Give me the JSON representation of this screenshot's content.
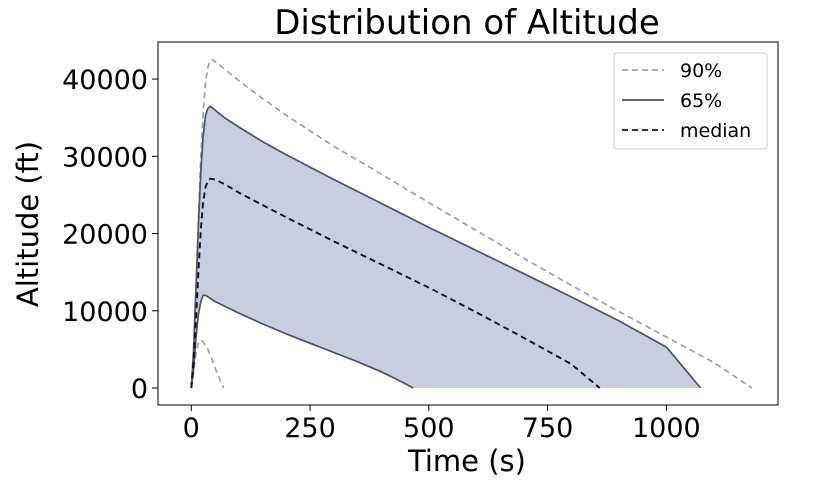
{
  "chart_data": {
    "type": "line",
    "title": "Distribution of Altitude",
    "xlabel": "Time (s)",
    "ylabel": "Altitude (ft)",
    "xlim": [
      -70,
      1235
    ],
    "ylim": [
      -2200,
      44800
    ],
    "xticks": [
      0,
      250,
      500,
      750,
      1000
    ],
    "yticks": [
      0,
      10000,
      20000,
      30000,
      40000
    ],
    "legend_position": "top-right",
    "legend": [
      {
        "label": "90%",
        "style": "dashed",
        "color": "#9e9eb2"
      },
      {
        "label": "65%",
        "style": "solid",
        "color": "#4d5166"
      },
      {
        "label": "median",
        "style": "dashed",
        "color": "#111111"
      }
    ],
    "fill_color": "#c8cedf",
    "series": [
      {
        "name": "90%",
        "role": "upper",
        "color": "#9e9eb2",
        "style": "dashed",
        "points": [
          [
            0,
            0
          ],
          [
            5,
            4000
          ],
          [
            10,
            12000
          ],
          [
            15,
            22000
          ],
          [
            20,
            30000
          ],
          [
            25,
            35500
          ],
          [
            30,
            39500
          ],
          [
            35,
            41500
          ],
          [
            40,
            42500
          ],
          [
            45,
            42500
          ],
          [
            60,
            41800
          ],
          [
            100,
            39800
          ],
          [
            150,
            37500
          ],
          [
            200,
            35300
          ],
          [
            300,
            31300
          ],
          [
            400,
            27700
          ],
          [
            500,
            24000
          ],
          [
            600,
            20400
          ],
          [
            700,
            16800
          ],
          [
            800,
            13300
          ],
          [
            900,
            9900
          ],
          [
            1000,
            6600
          ],
          [
            1100,
            3300
          ],
          [
            1180,
            0
          ]
        ]
      },
      {
        "name": "90%",
        "role": "lower",
        "color": "#9e9eb2",
        "style": "dashed",
        "points": [
          [
            0,
            0
          ],
          [
            5,
            2000
          ],
          [
            10,
            4500
          ],
          [
            15,
            5800
          ],
          [
            20,
            6200
          ],
          [
            25,
            6000
          ],
          [
            35,
            5000
          ],
          [
            45,
            3500
          ],
          [
            55,
            1800
          ],
          [
            68,
            0
          ]
        ]
      },
      {
        "name": "65%",
        "role": "upper",
        "color": "#4d5166",
        "style": "solid",
        "points": [
          [
            0,
            0
          ],
          [
            5,
            5000
          ],
          [
            10,
            13000
          ],
          [
            15,
            21000
          ],
          [
            20,
            28000
          ],
          [
            25,
            32500
          ],
          [
            30,
            35300
          ],
          [
            35,
            36200
          ],
          [
            40,
            36500
          ],
          [
            50,
            36000
          ],
          [
            70,
            35000
          ],
          [
            100,
            33800
          ],
          [
            150,
            31900
          ],
          [
            200,
            30200
          ],
          [
            300,
            27000
          ],
          [
            400,
            23900
          ],
          [
            500,
            20800
          ],
          [
            600,
            17800
          ],
          [
            700,
            14800
          ],
          [
            800,
            11800
          ],
          [
            900,
            8700
          ],
          [
            1000,
            5300
          ],
          [
            1072,
            0
          ]
        ]
      },
      {
        "name": "65%",
        "role": "lower",
        "color": "#4d5166",
        "style": "solid",
        "points": [
          [
            0,
            0
          ],
          [
            5,
            2500
          ],
          [
            10,
            6500
          ],
          [
            15,
            9500
          ],
          [
            20,
            11200
          ],
          [
            25,
            12000
          ],
          [
            30,
            12000
          ],
          [
            50,
            11200
          ],
          [
            100,
            9700
          ],
          [
            150,
            8300
          ],
          [
            200,
            7000
          ],
          [
            250,
            5800
          ],
          [
            300,
            4600
          ],
          [
            350,
            3400
          ],
          [
            400,
            2100
          ],
          [
            440,
            900
          ],
          [
            467,
            0
          ]
        ]
      },
      {
        "name": "median",
        "role": "median",
        "color": "#111111",
        "style": "dashed",
        "points": [
          [
            0,
            0
          ],
          [
            5,
            3500
          ],
          [
            10,
            9000
          ],
          [
            15,
            15000
          ],
          [
            20,
            20500
          ],
          [
            25,
            24000
          ],
          [
            30,
            26000
          ],
          [
            35,
            26800
          ],
          [
            40,
            27100
          ],
          [
            50,
            27000
          ],
          [
            70,
            26400
          ],
          [
            100,
            25300
          ],
          [
            150,
            23700
          ],
          [
            200,
            22100
          ],
          [
            300,
            19000
          ],
          [
            400,
            16000
          ],
          [
            500,
            13000
          ],
          [
            600,
            9800
          ],
          [
            700,
            6500
          ],
          [
            800,
            3100
          ],
          [
            860,
            0
          ]
        ]
      }
    ]
  }
}
